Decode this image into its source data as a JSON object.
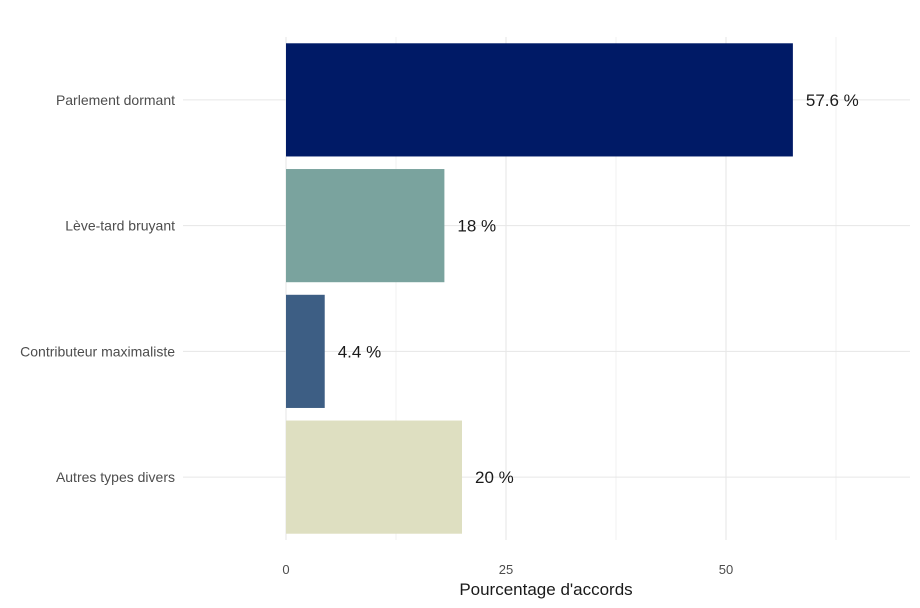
{
  "chart_data": {
    "type": "bar",
    "orientation": "horizontal",
    "categories": [
      "Parlement dormant",
      "Lève-tard bruyant",
      "Contributeur maximaliste",
      "Autres types divers"
    ],
    "values": [
      57.6,
      18,
      4.4,
      20
    ],
    "data_labels": [
      "57.6 %",
      "18 %",
      "4.4 %",
      "20 %"
    ],
    "colors": [
      "#001a66",
      "#7aa39e",
      "#3d5e84",
      "#dedfc1"
    ],
    "xlabel": "Pourcentage d'accords",
    "ylabel": "",
    "xlim": [
      0,
      63.5
    ],
    "x_ticks": [
      0,
      25,
      50
    ],
    "x_tick_labels": [
      "0",
      "25",
      "50"
    ],
    "x_minor_ticks": [
      12.5,
      37.5,
      62.5
    ],
    "grid": true,
    "legend": "none"
  }
}
